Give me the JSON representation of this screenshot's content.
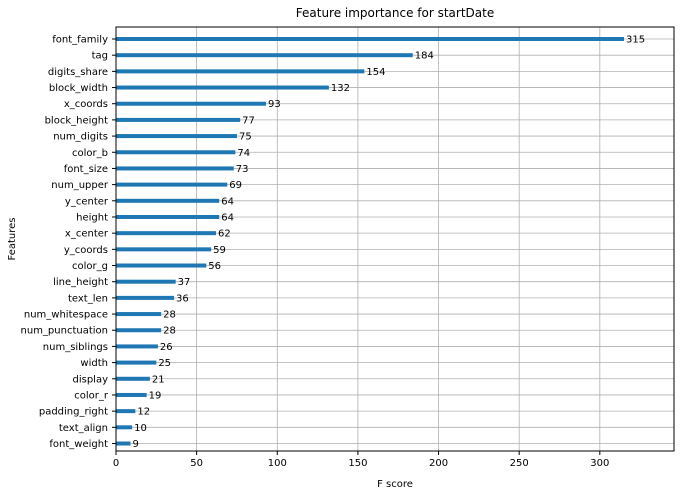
{
  "chart_data": {
    "type": "bar",
    "orientation": "horizontal",
    "title": "Feature importance for startDate",
    "xlabel": "F score",
    "ylabel": "Features",
    "xlim": [
      0,
      346
    ],
    "xticks": [
      0,
      50,
      100,
      150,
      200,
      250,
      300
    ],
    "grid": true,
    "bar_color": "#1f77b4",
    "categories": [
      "font_family",
      "tag",
      "digits_share",
      "block_width",
      "x_coords",
      "block_height",
      "num_digits",
      "color_b",
      "font_size",
      "num_upper",
      "y_center",
      "height",
      "x_center",
      "y_coords",
      "color_g",
      "line_height",
      "text_len",
      "num_whitespace",
      "num_punctuation",
      "num_siblings",
      "width",
      "display",
      "color_r",
      "padding_right",
      "text_align",
      "font_weight"
    ],
    "values": [
      315,
      184,
      154,
      132,
      93,
      77,
      75,
      74,
      73,
      69,
      64,
      64,
      62,
      59,
      56,
      37,
      36,
      28,
      28,
      26,
      25,
      21,
      19,
      12,
      10,
      9
    ]
  }
}
